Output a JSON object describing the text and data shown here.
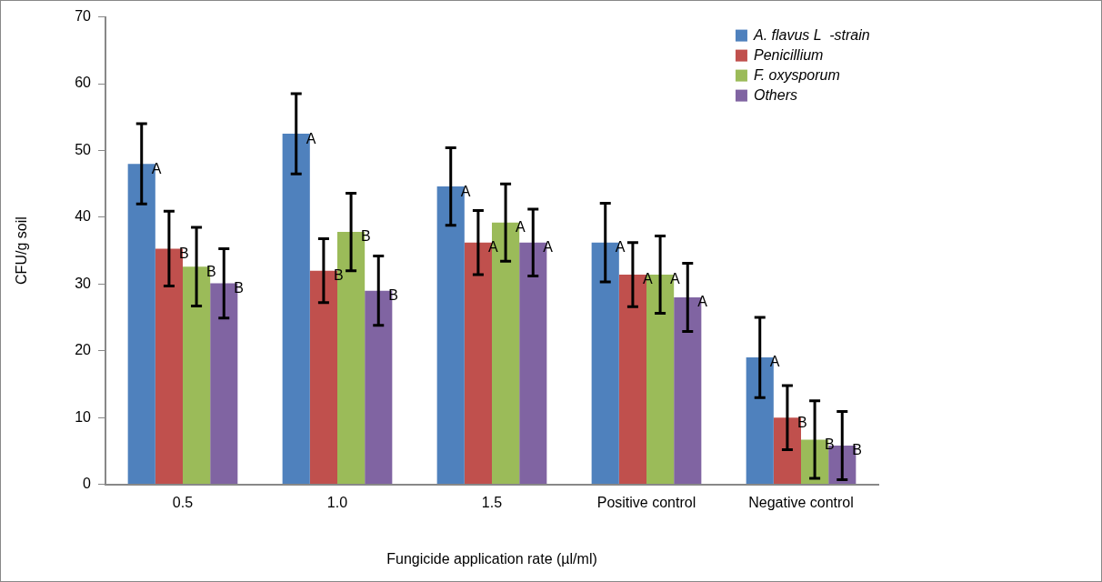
{
  "chart_data": {
    "type": "bar",
    "xlabel": "Fungicide application rate (µl/ml)",
    "ylabel": "CFU/g soil",
    "categories": [
      "0.5",
      "1.0",
      "1.5",
      "Positive control",
      "Negative control"
    ],
    "ylim": [
      0,
      70
    ],
    "yticks": [
      0,
      10,
      20,
      30,
      40,
      50,
      60,
      70
    ],
    "grid": false,
    "legend": "top right",
    "series": [
      {
        "name": "A. flavus L  -strain",
        "color": "#4f81bd",
        "values": [
          48.0,
          52.5,
          44.6,
          36.2,
          19.0
        ],
        "errors": [
          6,
          6,
          5.8,
          5.9,
          6
        ],
        "value_labels": [
          "A",
          "A",
          "A",
          "A",
          "A"
        ]
      },
      {
        "name": "Penicillium",
        "color": "#c0504d",
        "values": [
          35.3,
          32.0,
          36.2,
          31.4,
          10.0
        ],
        "errors": [
          5.6,
          4.8,
          4.8,
          4.8,
          4.8
        ],
        "value_labels": [
          "B",
          "B",
          "A",
          "A",
          "B"
        ]
      },
      {
        "name": "F. oxysporum",
        "color": "#9bbb59",
        "values": [
          32.6,
          37.8,
          39.2,
          31.4,
          6.7
        ],
        "errors": [
          5.9,
          5.8,
          5.8,
          5.8,
          5.8
        ],
        "value_labels": [
          "B",
          "B",
          "A",
          "A",
          "B"
        ]
      },
      {
        "name": "Others",
        "color": "#8064a2",
        "values": [
          30.1,
          29.0,
          36.2,
          28.0,
          5.8
        ],
        "errors": [
          5.2,
          5.2,
          5.0,
          5.1,
          5.1
        ],
        "value_labels": [
          "B",
          "B",
          "A",
          "A",
          "B"
        ]
      }
    ]
  }
}
